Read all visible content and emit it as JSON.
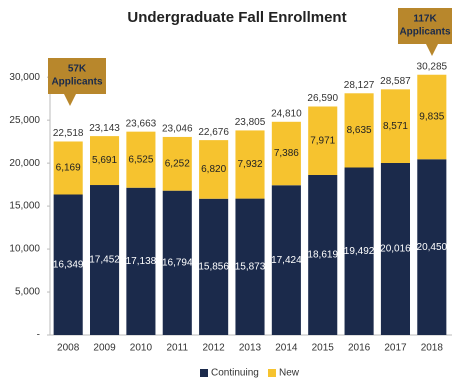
{
  "chart_data": {
    "type": "stacked-bar",
    "title": "Undergraduate Fall Enrollment",
    "categories": [
      "2008",
      "2009",
      "2010",
      "2011",
      "2012",
      "2013",
      "2014",
      "2015",
      "2016",
      "2017",
      "2018"
    ],
    "series": [
      {
        "name": "Continuing",
        "color": "#1b2a4b",
        "values": [
          16349,
          17452,
          17138,
          16794,
          15856,
          15873,
          17424,
          18619,
          19492,
          20016,
          20450
        ],
        "value_labels": [
          "16,349",
          "17,452",
          "17,138",
          "16,794",
          "15,856",
          "15,873",
          "17,424",
          "18,619",
          "19,492",
          "20,016",
          "20,450"
        ]
      },
      {
        "name": "New",
        "color": "#f6c32f",
        "values": [
          6169,
          5691,
          6525,
          6252,
          6820,
          7932,
          7386,
          7971,
          8635,
          8571,
          9835
        ],
        "value_labels": [
          "6,169",
          "5,691",
          "6,525",
          "6,252",
          "6,820",
          "7,932",
          "7,386",
          "7,971",
          "8,635",
          "8,571",
          "9,835"
        ]
      }
    ],
    "totals": [
      22518,
      23143,
      23663,
      23046,
      22676,
      23805,
      24810,
      26590,
      28127,
      28587,
      30285
    ],
    "total_labels": [
      "22,518",
      "23,143",
      "23,663",
      "23,046",
      "22,676",
      "23,805",
      "24,810",
      "26,590",
      "28,127",
      "28,587",
      "30,285"
    ],
    "ylim": [
      0,
      32000
    ],
    "yticks": [
      {
        "value": 0,
        "label": "-"
      },
      {
        "value": 5000,
        "label": "5,000"
      },
      {
        "value": 10000,
        "label": "10,000"
      },
      {
        "value": 15000,
        "label": "15,000"
      },
      {
        "value": 20000,
        "label": "20,000"
      },
      {
        "value": 25000,
        "label": "25,000"
      },
      {
        "value": 30000,
        "label": "30,000"
      }
    ],
    "grid": false,
    "legend": "bottom",
    "annotations": [
      {
        "lines": [
          "57K",
          "Applicants"
        ],
        "color": "#b8872c"
      },
      {
        "lines": [
          "117K",
          "Applicants"
        ],
        "color": "#b8872c"
      }
    ]
  }
}
